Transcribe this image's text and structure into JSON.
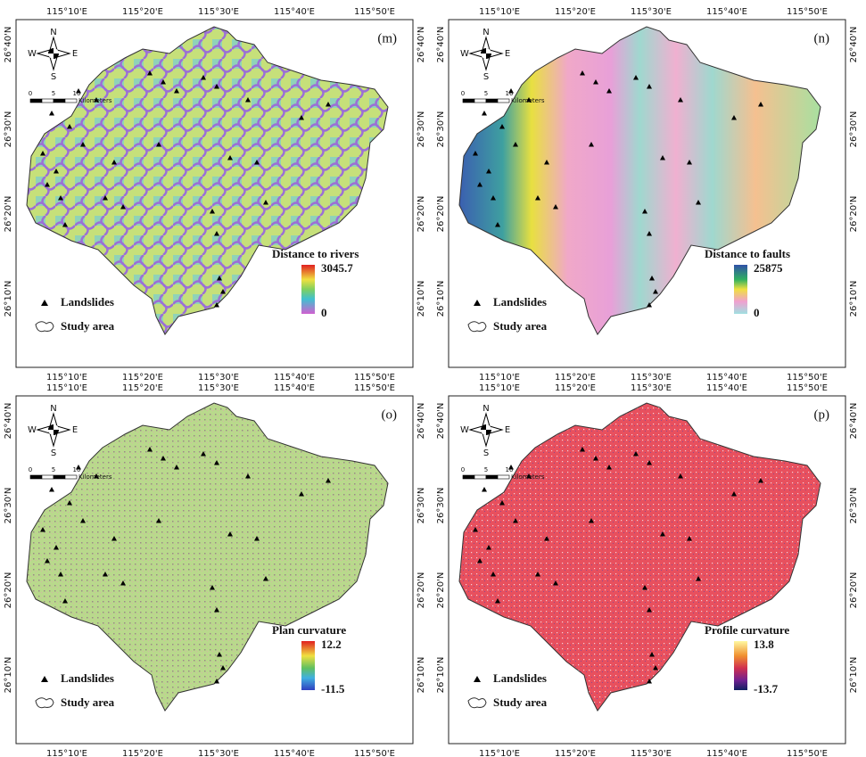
{
  "axes": {
    "lon_labels": [
      "115°10'E",
      "115°20'E",
      "115°30'E",
      "115°40'E",
      "115°50'E"
    ],
    "lat_labels": [
      "26°40'N",
      "26°30'N",
      "26°20'N",
      "26°10'N"
    ]
  },
  "compass": {
    "n": "N",
    "s": "S",
    "w": "W",
    "e": "E"
  },
  "scale_bar": {
    "ticks": [
      "0",
      "5",
      "10"
    ],
    "unit": "Kilometers"
  },
  "legend": {
    "landslides": "Landslides",
    "study_area": "Study area"
  },
  "panels": [
    {
      "label": "(m)",
      "legend_title": "Distance to rivers",
      "max": 3045.7,
      "min": 0
    },
    {
      "label": "(n)",
      "legend_title": "Distance to faults",
      "max": 25875,
      "min": 0
    },
    {
      "label": "(o)",
      "legend_title": "Plan curvature",
      "max": 12.2,
      "min": -11.5
    },
    {
      "label": "(p)",
      "legend_title": "Profile curvature",
      "max": 13.8,
      "min": -13.7
    }
  ]
}
